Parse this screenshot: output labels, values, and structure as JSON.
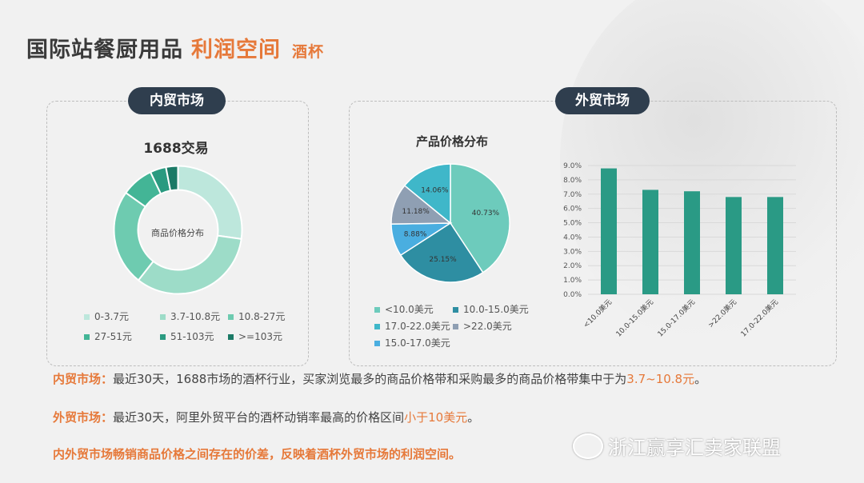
{
  "title": {
    "main": "国际站餐厨用品",
    "highlight": "利润空间",
    "sub": "酒杯"
  },
  "left_panel": {
    "pill": "内贸市场",
    "chart_title": "1688交易",
    "center_label": "商品价格分布"
  },
  "mid_panel": {
    "pill": "外贸市场",
    "chart_title": "产品价格分布"
  },
  "colors": {
    "accent": "#e6793a",
    "pill": "#2f3e4e",
    "bar": "#2a9a85"
  },
  "chart_data": [
    {
      "type": "pie",
      "variant": "donut",
      "title": "1688交易",
      "center_label": "商品价格分布",
      "categories": [
        "0-3.7元",
        "3.7-10.8元",
        "10.8-27元",
        "27-51元",
        "51-103元",
        ">=103元"
      ],
      "values": [
        27,
        33,
        24,
        8,
        4,
        3
      ],
      "colors": [
        "#bde7dc",
        "#9ddcc8",
        "#6ecbb0",
        "#43b596",
        "#2a9a80",
        "#1b7a66"
      ],
      "legend": "bottom"
    },
    {
      "type": "pie",
      "title": "产品价格分布",
      "categories": [
        "<10.0美元",
        "10.0-15.0美元",
        "17.0-22.0美元",
        ">22.0美元",
        "15.0-17.0美元"
      ],
      "slice_order": [
        "<10.0美元",
        "10.0-15.0美元",
        "15.0-17.0美元",
        ">22.0美元",
        "17.0-22.0美元"
      ],
      "values": [
        40.73,
        25.15,
        14.06,
        11.18,
        8.88
      ],
      "labels": [
        "40.73%",
        "25.15%",
        "14.06%",
        "11.18%",
        "8.88%"
      ],
      "colors": {
        "<10.0美元": "#6dcbbc",
        "10.0-15.0美元": "#2e8ea2",
        "15.0-17.0美元": "#4aaee0",
        ">22.0美元": "#8f9fb3",
        "17.0-22.0美元": "#3fb7c9"
      },
      "legend": "bottom"
    },
    {
      "type": "bar",
      "categories": [
        "<10.0美元",
        "10.0-15.0美元",
        "15.0-17.0美元",
        ">22.0美元",
        "17.0-22.0美元"
      ],
      "values": [
        8.8,
        7.3,
        7.2,
        6.8,
        6.8
      ],
      "ylim": [
        0,
        9
      ],
      "yticks": [
        "0.0%",
        "1.0%",
        "2.0%",
        "3.0%",
        "4.0%",
        "5.0%",
        "6.0%",
        "7.0%",
        "8.0%",
        "9.0%"
      ],
      "grid": true
    }
  ],
  "text": {
    "p1": {
      "label": "内贸市场：",
      "body": "最近30天，1688市场的酒杯行业，买家浏览最多的商品价格带和采购最多的商品价格带集中于为",
      "highlight": "3.7~10.8元",
      "end": "。"
    },
    "p2": {
      "label": "外贸市场：",
      "body": "最近30天，阿里外贸平台的酒杯动销率最高的价格区间",
      "highlight": "小于10美元",
      "end": "。"
    },
    "final": "内外贸市场畅销商品价格之间存在的价差，反映着酒杯外贸市场的利润空间。"
  },
  "watermark": "浙江赢享汇卖家联盟"
}
